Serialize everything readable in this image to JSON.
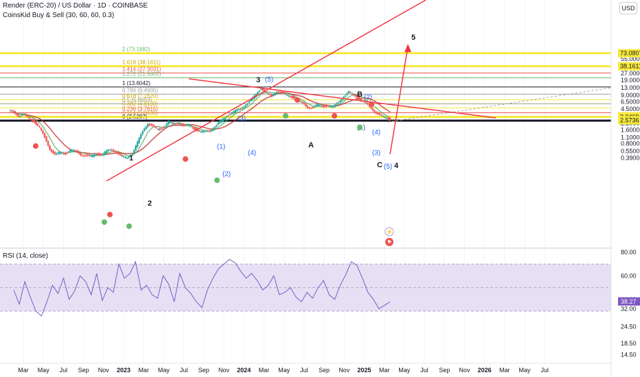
{
  "header": {
    "symbol": "Render (ERC-20) / US Dollar · 1D · COINBASE",
    "indicator": "CoinsKid Buy & Sell (30, 60, 60, 0.3)",
    "currency": "USD"
  },
  "rsi_pane": {
    "label": "RSI (14, close)"
  },
  "colors": {
    "up": "#26a69a",
    "down": "#ef5350",
    "fib_yellow": "#f7e93b",
    "trend_red": "#f23645",
    "wave_blue": "#2962ff",
    "rsi_line": "#7e57c2",
    "rsi_band": "#e6e0f5"
  },
  "chart_data": {
    "type": "candlestick",
    "price_scale": "log",
    "price_axis_labels": [
      "55.0000",
      "27.0000",
      "19.0000",
      "13.0000",
      "9.0000",
      "6.5000",
      "4.5000",
      "2.2000",
      "1.6000",
      "1.1000",
      "0.8000",
      "0.5500",
      "0.3900"
    ],
    "price_markers": [
      {
        "value": "73.0807",
        "bg": "#f7e93b"
      },
      {
        "value": "38.1611",
        "bg": "#f7e93b"
      },
      {
        "value": "3.1562",
        "bg": "#f7e93b"
      },
      {
        "value": "3.0469",
        "bg": "#f7e93b"
      },
      {
        "value": "2.5736",
        "bg": "#f7e93b"
      }
    ],
    "time_axis_labels": [
      "Mar",
      "May",
      "Jul",
      "Sep",
      "Nov",
      "2023",
      "Mar",
      "May",
      "Jul",
      "Sep",
      "Nov",
      "2024",
      "Mar",
      "May",
      "Jul",
      "Sep",
      "Nov",
      "2025",
      "Mar",
      "May",
      "Jul",
      "Sep",
      "Nov",
      "2026",
      "Mar",
      "May",
      "Jul"
    ],
    "fib_levels": [
      {
        "label": "2 (73.1882)",
        "price": 73.1882
      },
      {
        "label": "1.618 (38.1611)",
        "price": 38.1611
      },
      {
        "label": "1.414 (27.3031)",
        "price": 27.3031
      },
      {
        "label": "1.272 (21.5002)",
        "price": 21.5002
      },
      {
        "label": "1 (13.6042)",
        "price": 13.6042
      },
      {
        "label": "0.786 (9.4905)",
        "price": 9.4905
      },
      {
        "label": "0.618 (7.1520)",
        "price": 7.152
      },
      {
        "label": "0.5 (5.8653)",
        "price": 5.8653
      },
      {
        "label": "0.382 (4.8130)",
        "price": 4.813
      },
      {
        "label": "0.236 (3.7615)",
        "price": 3.7615
      },
      {
        "label": "0.114 (3.0638)",
        "price": 3.0638
      },
      {
        "label": "0 (2.5287)",
        "price": 2.5287
      }
    ],
    "wave_labels": [
      {
        "text": "1",
        "dark": true
      },
      {
        "text": "2",
        "dark": true
      },
      {
        "text": "(1)",
        "dark": false
      },
      {
        "text": "(2)",
        "dark": false
      },
      {
        "text": "(3)",
        "dark": false
      },
      {
        "text": "(4)",
        "dark": false
      },
      {
        "text": "3",
        "dark": true
      },
      {
        "text": "(5)",
        "dark": false
      },
      {
        "text": "A",
        "dark": true
      },
      {
        "text": "B",
        "dark": true
      },
      {
        "text": "(1)",
        "dark": false
      },
      {
        "text": "(2)",
        "dark": false
      },
      {
        "text": "(3)",
        "dark": false
      },
      {
        "text": "(4)",
        "dark": false
      },
      {
        "text": "C",
        "dark": true
      },
      {
        "text": "(5)",
        "dark": false
      },
      {
        "text": "4",
        "dark": true
      },
      {
        "text": "5",
        "dark": true
      }
    ],
    "closes": [
      3.9,
      3.2,
      3.4,
      2.8,
      2.4,
      1.8,
      1.1,
      0.62,
      0.46,
      0.52,
      0.49,
      0.58,
      0.55,
      0.47,
      0.44,
      0.43,
      0.48,
      0.46,
      0.55,
      0.6,
      0.52,
      0.42,
      0.4,
      0.5,
      0.85,
      1.5,
      2.2,
      1.9,
      1.65,
      1.8,
      2.4,
      2.1,
      2.3,
      1.95,
      2.0,
      1.7,
      1.5,
      1.45,
      1.55,
      1.85,
      2.4,
      3.0,
      3.6,
      4.1,
      4.6,
      5.6,
      7.0,
      9.5,
      12.8,
      10.0,
      8.5,
      11.0,
      10.2,
      9.0,
      8.2,
      7.2,
      6.0,
      5.0,
      4.8,
      5.6,
      5.2,
      5.3,
      5.0,
      6.5,
      8.3,
      10.5,
      9.2,
      7.5,
      6.4,
      5.2,
      4.0,
      3.3,
      3.0,
      2.7
    ],
    "rsi": {
      "levels": [
        70,
        50,
        30
      ],
      "axis_labels": [
        "80.00",
        "60.00",
        "40.00",
        "32.00",
        "24.50",
        "18.50",
        "14.50"
      ],
      "current": "38.27",
      "values": [
        48,
        36,
        55,
        42,
        30,
        26,
        38,
        52,
        45,
        58,
        40,
        47,
        60,
        55,
        44,
        62,
        39,
        50,
        46,
        70,
        58,
        62,
        72,
        48,
        52,
        44,
        41,
        60,
        53,
        38,
        62,
        50,
        45,
        38,
        33,
        48,
        58,
        66,
        70,
        74,
        71,
        64,
        58,
        62,
        56,
        48,
        52,
        60,
        44,
        46,
        50,
        42,
        38,
        46,
        41,
        50,
        56,
        44,
        40,
        52,
        61,
        72,
        69,
        58,
        46,
        40,
        32,
        35,
        38
      ]
    }
  },
  "side_icons": [
    {
      "name": "lightning-icon",
      "glyph": "⚡"
    },
    {
      "name": "flag-icon",
      "glyph": "⚑"
    }
  ]
}
